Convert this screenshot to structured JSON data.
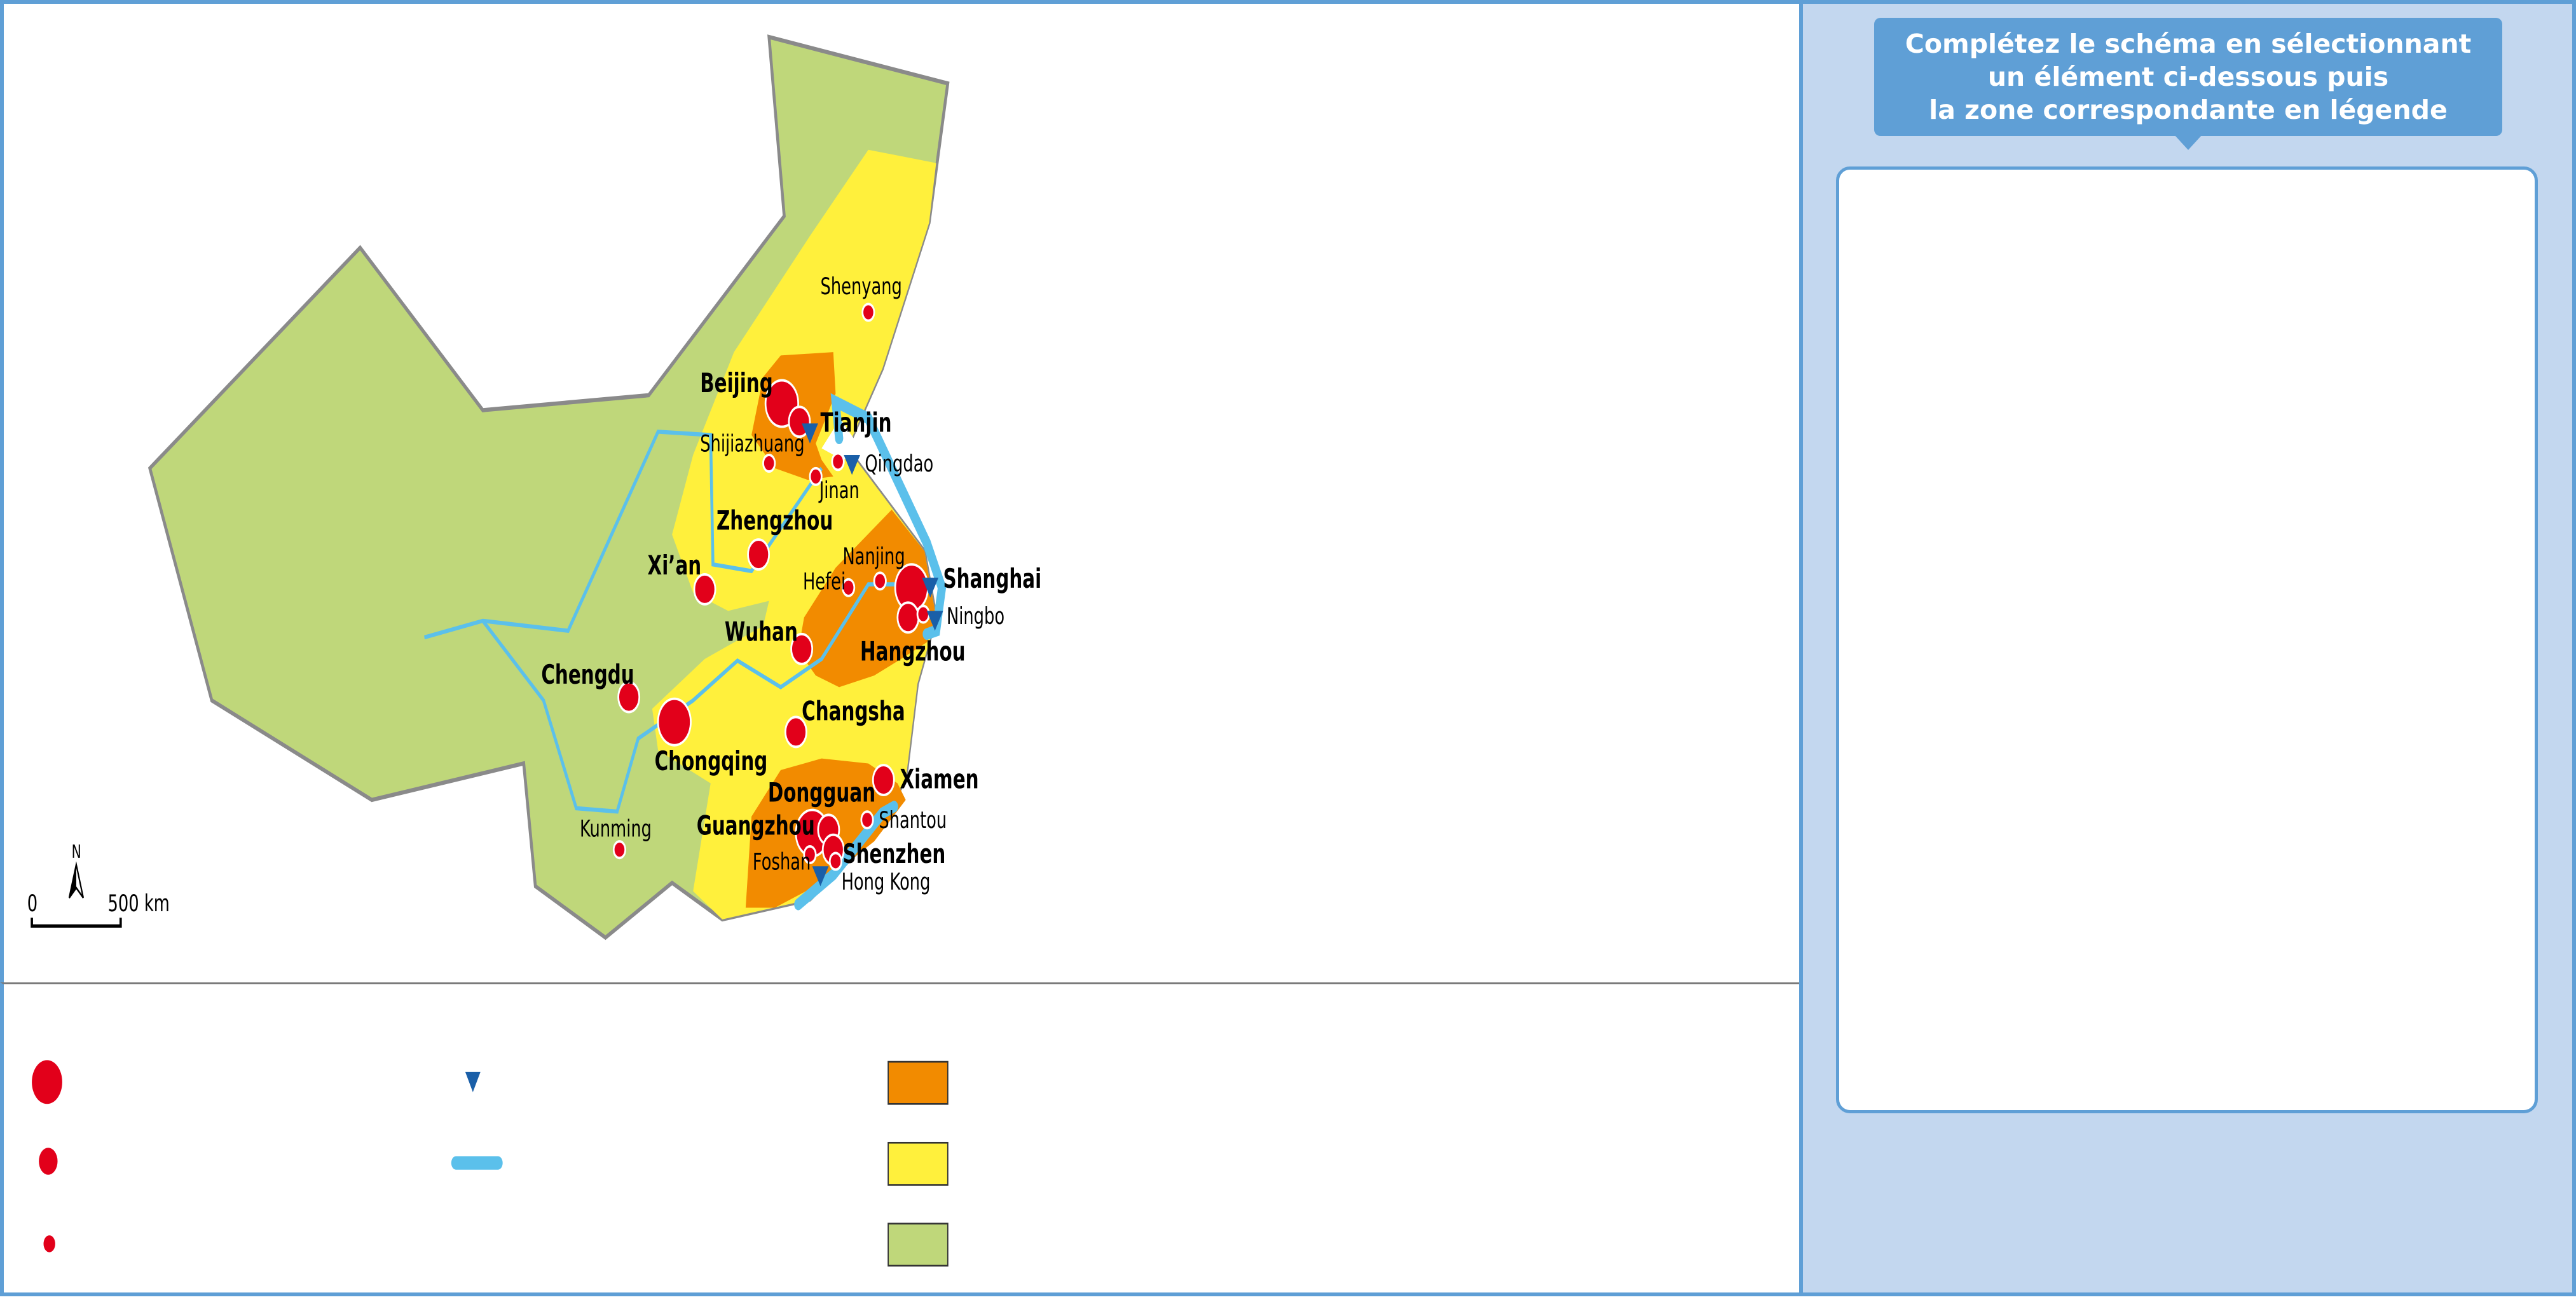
{
  "instruction": "Complétez le schéma en sélectionnant\nun élément ci-dessous puis\nla zone correspondante en légende",
  "scale": {
    "zero": "0",
    "distance": "500 km",
    "north": "N"
  },
  "cities": {
    "shenyang": "Shenyang",
    "beijing": "Beijing",
    "tianjin": "Tianjin",
    "shijiazhuang": "Shijiazhuang",
    "qingdao": "Qingdao",
    "jinan": "Jinan",
    "zhengzhou": "Zhengzhou",
    "xian": "Xi’an",
    "nanjing": "Nanjing",
    "hefei": "Hefei",
    "shanghai": "Shanghai",
    "ningbo": "Ningbo",
    "wuhan": "Wuhan",
    "hangzhou": "Hangzhou",
    "chengdu": "Chengdu",
    "chongqing": "Chongqing",
    "changsha": "Changsha",
    "xiamen": "Xiamen",
    "dongguan": "Dongguan",
    "guangzhou": "Guangzhou",
    "shantou": "Shantou",
    "foshan": "Foshan",
    "shenzhen": "Shenzhen",
    "hongkong": "Hong Kong",
    "kunming": "Kunming"
  },
  "colors": {
    "core_zone": "#f28b00",
    "secondary_zone": "#fff03c",
    "periphery_zone": "#bfd77a",
    "city": "#e2001a",
    "port": "#1a5fa8",
    "transport_axis": "#5bc0eb",
    "panel_border": "#5f9fd6"
  },
  "legend": {
    "symbols": [
      "city-large",
      "city-medium",
      "city-small",
      "port",
      "maritime-facade",
      "core-zone",
      "secondary-zone",
      "periphery-zone"
    ]
  }
}
